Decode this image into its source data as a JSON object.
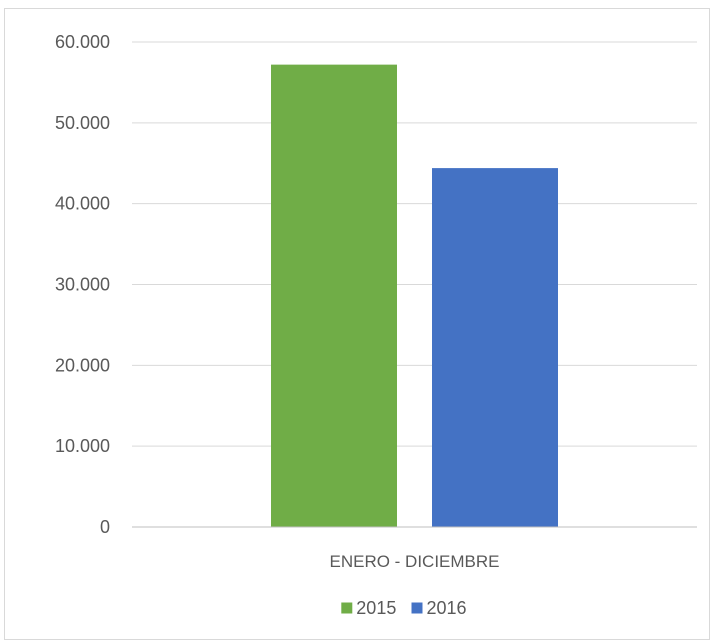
{
  "chart_data": {
    "type": "bar",
    "categories": [
      "ENERO - DICIEMBRE"
    ],
    "series": [
      {
        "name": "2015",
        "values": [
          57200
        ],
        "color": "#70AD47"
      },
      {
        "name": "2016",
        "values": [
          44400
        ],
        "color": "#4472C4"
      }
    ],
    "ylim": [
      0,
      60000
    ],
    "yticks": [
      0,
      10000,
      20000,
      30000,
      40000,
      50000,
      60000
    ],
    "ytick_labels": [
      "0",
      "10.000",
      "20.000",
      "30.000",
      "40.000",
      "50.000",
      "60.000"
    ],
    "grid": true,
    "legend": "bottom",
    "title": "",
    "xlabel": "",
    "ylabel": ""
  }
}
